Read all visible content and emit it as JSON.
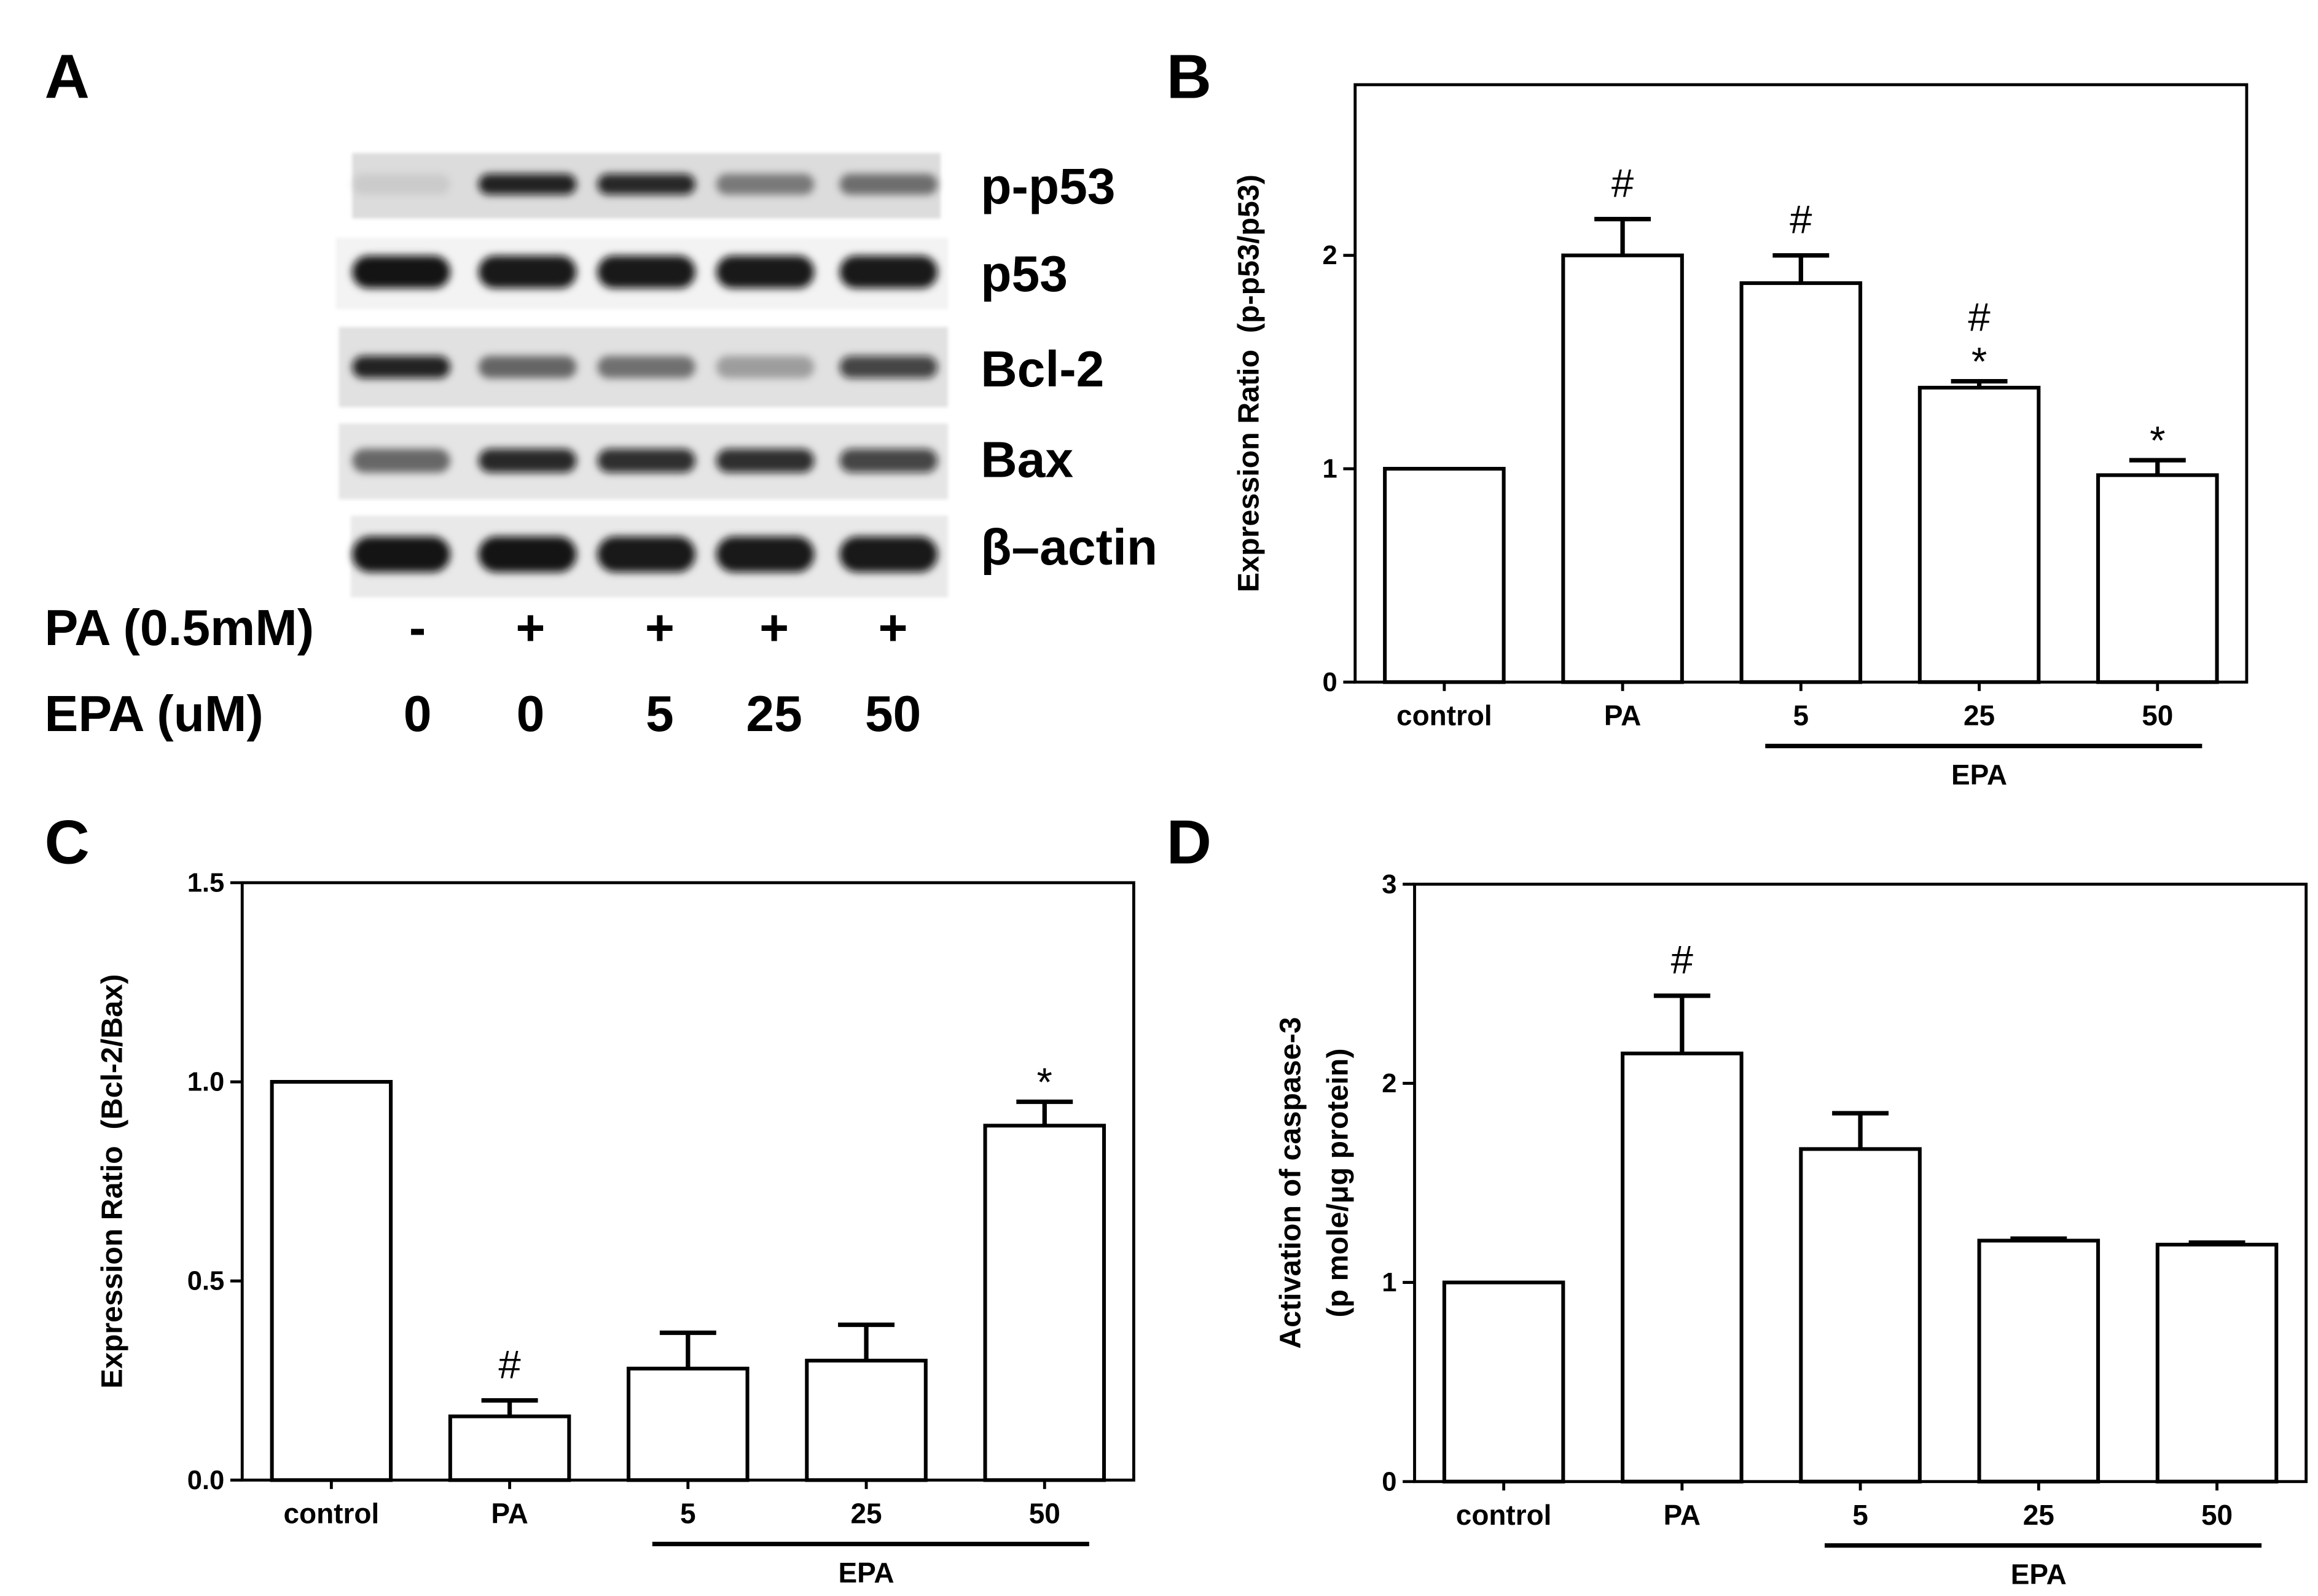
{
  "panel_a": {
    "label": "A",
    "blot_rows": [
      {
        "name": "p-p53",
        "band_intensity": [
          0.08,
          0.9,
          0.88,
          0.45,
          0.5
        ]
      },
      {
        "name": "p53",
        "band_intensity": [
          0.97,
          0.95,
          0.95,
          0.95,
          0.95
        ]
      },
      {
        "name": "Bcl-2",
        "band_intensity": [
          0.9,
          0.55,
          0.5,
          0.3,
          0.75
        ]
      },
      {
        "name": "Bax",
        "band_intensity": [
          0.55,
          0.88,
          0.85,
          0.85,
          0.75
        ]
      },
      {
        "name": "β–actin",
        "band_intensity": [
          0.97,
          0.97,
          0.95,
          0.95,
          0.95
        ]
      }
    ],
    "conditions": [
      {
        "label": "PA (0.5mM)",
        "values": [
          "-",
          "+",
          "+",
          "+",
          "+"
        ]
      },
      {
        "label": "EPA (uM)",
        "values": [
          "0",
          "0",
          "5",
          "25",
          "50"
        ]
      }
    ]
  },
  "chart_data": [
    {
      "panel_label": "B",
      "type": "bar",
      "categories": [
        "control",
        "PA",
        "5",
        "25",
        "50"
      ],
      "values": [
        1.0,
        2.0,
        1.87,
        1.38,
        0.97
      ],
      "errors": [
        0,
        0.17,
        0.13,
        0.03,
        0.07
      ],
      "markers": [
        [],
        [
          "#"
        ],
        [
          "#"
        ],
        [
          "#",
          "*"
        ],
        [
          "*"
        ]
      ],
      "ylabel": "Expression Ratio  (p-p53/p53)",
      "yticks": [
        "0",
        "1",
        "2"
      ],
      "ylim": [
        0,
        2.8
      ],
      "bracket": {
        "label": "EPA",
        "from": "5",
        "to": "50"
      },
      "grid": false
    },
    {
      "panel_label": "C",
      "type": "bar",
      "categories": [
        "control",
        "PA",
        "5",
        "25",
        "50"
      ],
      "values": [
        1.0,
        0.16,
        0.28,
        0.3,
        0.89
      ],
      "errors": [
        0,
        0.04,
        0.09,
        0.09,
        0.06
      ],
      "markers": [
        [],
        [
          "#"
        ],
        [],
        [],
        [
          "*"
        ]
      ],
      "ylabel": "Expression Ratio  (Bcl-2/Bax)",
      "yticks": [
        "0.0",
        "0.5",
        "1.0",
        "1.5"
      ],
      "ylim": [
        0,
        1.5
      ],
      "bracket": {
        "label": "EPA",
        "from": "5",
        "to": "50"
      },
      "grid": false
    },
    {
      "panel_label": "D",
      "type": "bar",
      "categories": [
        "control",
        "PA",
        "5",
        "25",
        "50"
      ],
      "values": [
        1.0,
        2.15,
        1.67,
        1.21,
        1.19
      ],
      "errors": [
        0,
        0.29,
        0.18,
        0.01,
        0.01
      ],
      "markers": [
        [],
        [
          "#"
        ],
        [],
        [],
        []
      ],
      "ylabel": [
        "Activation of caspase-3",
        "(p mole/μg protein)"
      ],
      "yticks": [
        "0",
        "1",
        "2",
        "3"
      ],
      "ylim": [
        0,
        3
      ],
      "bracket": {
        "label": "EPA",
        "from": "5",
        "to": "50"
      },
      "grid": false
    }
  ]
}
